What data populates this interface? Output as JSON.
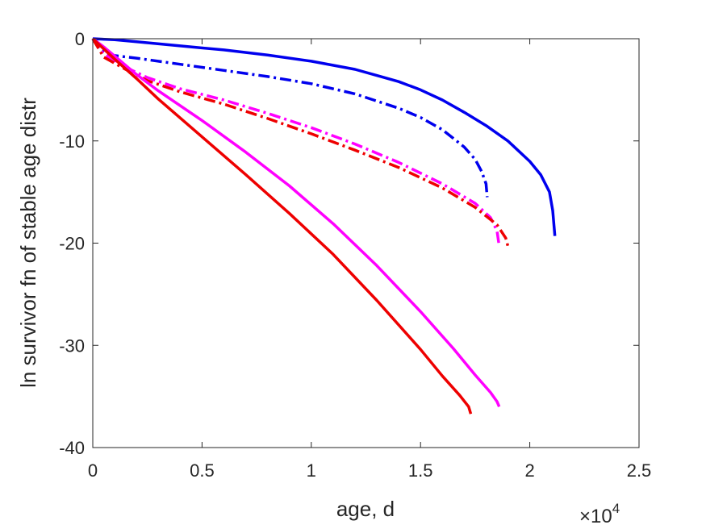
{
  "chart_data": {
    "type": "line",
    "xlabel": "age, d",
    "ylabel": "ln survivor fn of stable age distr",
    "xlim": [
      0,
      25000
    ],
    "ylim": [
      -40,
      0
    ],
    "x_exponent_prefix": "×10",
    "x_exponent_power": "4",
    "x_ticks": [
      {
        "value": 0,
        "label": "0"
      },
      {
        "value": 5000,
        "label": "0.5"
      },
      {
        "value": 10000,
        "label": "1"
      },
      {
        "value": 15000,
        "label": "1.5"
      },
      {
        "value": 20000,
        "label": "2"
      },
      {
        "value": 25000,
        "label": "2.5"
      }
    ],
    "y_ticks": [
      {
        "value": 0,
        "label": "0"
      },
      {
        "value": -10,
        "label": "-10"
      },
      {
        "value": -20,
        "label": "-20"
      },
      {
        "value": -30,
        "label": "-30"
      },
      {
        "value": -40,
        "label": "-40"
      }
    ],
    "grid": false,
    "series": [
      {
        "color": "#0000ee",
        "style": "solid",
        "points": [
          [
            0,
            0
          ],
          [
            1000,
            -0.1
          ],
          [
            2000,
            -0.3
          ],
          [
            4000,
            -0.7
          ],
          [
            6000,
            -1.1
          ],
          [
            8000,
            -1.6
          ],
          [
            10000,
            -2.2
          ],
          [
            12000,
            -3.0
          ],
          [
            13000,
            -3.6
          ],
          [
            14000,
            -4.2
          ],
          [
            15000,
            -5.0
          ],
          [
            16000,
            -6.0
          ],
          [
            17000,
            -7.2
          ],
          [
            18000,
            -8.5
          ],
          [
            19000,
            -10.0
          ],
          [
            20000,
            -12.0
          ],
          [
            20500,
            -13.3
          ],
          [
            20900,
            -15.0
          ],
          [
            21050,
            -16.8
          ],
          [
            21150,
            -19.3
          ]
        ]
      },
      {
        "color": "#0000ee",
        "style": "dashdot",
        "points": [
          [
            0,
            0
          ],
          [
            300,
            -1.0
          ],
          [
            800,
            -1.6
          ],
          [
            2000,
            -1.9
          ],
          [
            4000,
            -2.5
          ],
          [
            6000,
            -3.1
          ],
          [
            8000,
            -3.7
          ],
          [
            10000,
            -4.4
          ],
          [
            12000,
            -5.4
          ],
          [
            14000,
            -6.8
          ],
          [
            15000,
            -7.7
          ],
          [
            16000,
            -8.9
          ],
          [
            17000,
            -10.6
          ],
          [
            17500,
            -11.8
          ],
          [
            17800,
            -13.0
          ],
          [
            18000,
            -14.2
          ],
          [
            18050,
            -15.5
          ]
        ]
      },
      {
        "color": "#ff00ff",
        "style": "dashdot",
        "points": [
          [
            0,
            0
          ],
          [
            500,
            -1.5
          ],
          [
            1500,
            -2.8
          ],
          [
            2500,
            -3.8
          ],
          [
            4000,
            -4.9
          ],
          [
            6000,
            -6.0
          ],
          [
            8000,
            -7.3
          ],
          [
            10000,
            -8.7
          ],
          [
            12000,
            -10.3
          ],
          [
            14000,
            -12.1
          ],
          [
            16000,
            -14.2
          ],
          [
            17500,
            -16.1
          ],
          [
            18200,
            -17.5
          ],
          [
            18500,
            -18.8
          ],
          [
            18600,
            -20.3
          ]
        ]
      },
      {
        "color": "#ee0000",
        "style": "dashdot",
        "points": [
          [
            0,
            0
          ],
          [
            500,
            -1.8
          ],
          [
            1500,
            -3.0
          ],
          [
            2500,
            -4.1
          ],
          [
            4000,
            -5.2
          ],
          [
            6000,
            -6.4
          ],
          [
            8000,
            -7.8
          ],
          [
            10000,
            -9.3
          ],
          [
            12000,
            -10.9
          ],
          [
            14000,
            -12.6
          ],
          [
            16000,
            -14.6
          ],
          [
            17500,
            -16.5
          ],
          [
            18500,
            -18.2
          ],
          [
            18900,
            -19.5
          ],
          [
            19000,
            -20.3
          ]
        ]
      },
      {
        "color": "#ff00ff",
        "style": "solid",
        "points": [
          [
            0,
            0
          ],
          [
            500,
            -0.8
          ],
          [
            1000,
            -1.7
          ],
          [
            2000,
            -3.5
          ],
          [
            3000,
            -5.1
          ],
          [
            5000,
            -8.0
          ],
          [
            7000,
            -11.1
          ],
          [
            9000,
            -14.4
          ],
          [
            11000,
            -18.1
          ],
          [
            13000,
            -22.2
          ],
          [
            15000,
            -26.7
          ],
          [
            16500,
            -30.3
          ],
          [
            17500,
            -32.9
          ],
          [
            18200,
            -34.6
          ],
          [
            18500,
            -35.5
          ],
          [
            18600,
            -36.0
          ]
        ]
      },
      {
        "color": "#ee0000",
        "style": "solid",
        "points": [
          [
            0,
            0
          ],
          [
            1000,
            -2.0
          ],
          [
            2000,
            -3.9
          ],
          [
            3000,
            -5.9
          ],
          [
            5000,
            -9.6
          ],
          [
            7000,
            -13.3
          ],
          [
            9000,
            -17.1
          ],
          [
            11000,
            -21.1
          ],
          [
            13000,
            -25.6
          ],
          [
            15000,
            -30.4
          ],
          [
            16000,
            -33.0
          ],
          [
            16800,
            -34.9
          ],
          [
            17200,
            -36.0
          ],
          [
            17300,
            -36.7
          ]
        ]
      }
    ]
  }
}
